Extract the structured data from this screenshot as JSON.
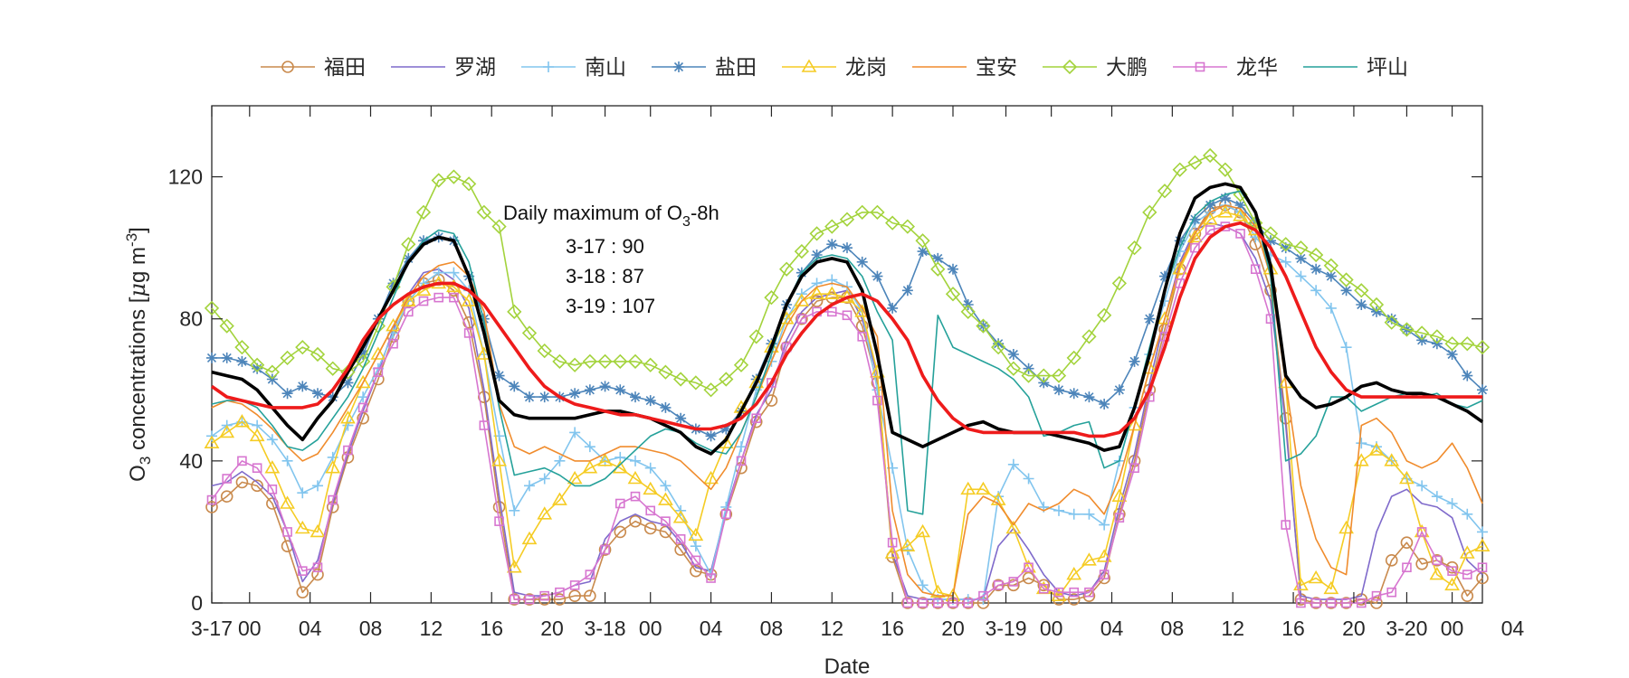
{
  "chart_data": {
    "type": "line",
    "title": "",
    "xlabel": "Date",
    "ylabel": {
      "prefix": "O",
      "sub": "3",
      "main": " concentrations [",
      "mu": "μ",
      "unit": "g m",
      "sup": "-3",
      "end": "]"
    },
    "ylim": [
      0,
      140
    ],
    "yticks": [
      0,
      40,
      80,
      120
    ],
    "xlim": [
      0,
      84
    ],
    "xticks": [
      {
        "x": 0,
        "label": "3-17"
      },
      {
        "x": 2.5,
        "label": "00"
      },
      {
        "x": 6.5,
        "label": "04"
      },
      {
        "x": 10.5,
        "label": "08"
      },
      {
        "x": 14.5,
        "label": "12"
      },
      {
        "x": 18.5,
        "label": "16"
      },
      {
        "x": 22.5,
        "label": "20"
      },
      {
        "x": 26,
        "label": "3-18"
      },
      {
        "x": 29,
        "label": "00"
      },
      {
        "x": 33,
        "label": "04"
      },
      {
        "x": 37,
        "label": "08"
      },
      {
        "x": 41,
        "label": "12"
      },
      {
        "x": 45,
        "label": "16"
      },
      {
        "x": 49,
        "label": "20"
      },
      {
        "x": 52.5,
        "label": "3-19"
      },
      {
        "x": 55.5,
        "label": "00"
      },
      {
        "x": 59.5,
        "label": "04"
      },
      {
        "x": 63.5,
        "label": "08"
      },
      {
        "x": 67.5,
        "label": "12"
      },
      {
        "x": 71.5,
        "label": "16"
      },
      {
        "x": 75.5,
        "label": "20"
      },
      {
        "x": 79,
        "label": "3-20"
      },
      {
        "x": 82,
        "label": "00"
      },
      {
        "x": 86,
        "label": "04"
      }
    ],
    "grid": false,
    "legend_position": "top",
    "annotation": {
      "title_prefix": "Daily maximum of O",
      "title_sub": "3",
      "title_suffix": "-8h",
      "lines": [
        "3-17 : 90",
        "3-18 : 87",
        "3-19 : 107"
      ]
    },
    "x": [
      0,
      1,
      2,
      3,
      4,
      5,
      6,
      7,
      8,
      9,
      10,
      11,
      12,
      13,
      14,
      15,
      16,
      17,
      18,
      19,
      20,
      21,
      22,
      23,
      24,
      25,
      26,
      27,
      28,
      29,
      30,
      31,
      32,
      33,
      34,
      35,
      36,
      37,
      38,
      39,
      40,
      41,
      42,
      43,
      44,
      45,
      46,
      47,
      48,
      49,
      50,
      51,
      52,
      53,
      54,
      55,
      56,
      57,
      58,
      59,
      60,
      61,
      62,
      63,
      64,
      65,
      66,
      67,
      68,
      69,
      70,
      71,
      72,
      73,
      74,
      75,
      76,
      77,
      78,
      79,
      80,
      81,
      82,
      83,
      84
    ],
    "series": [
      {
        "name": "福田",
        "color": "#c98a4d",
        "marker": "circle",
        "values": [
          27,
          30,
          34,
          33,
          28,
          16,
          3,
          8,
          27,
          41,
          52,
          63,
          75,
          85,
          90,
          91,
          88,
          79,
          58,
          27,
          1,
          1,
          1,
          1,
          2,
          2,
          15,
          20,
          23,
          21,
          20,
          15,
          9,
          8,
          25,
          38,
          51,
          57,
          72,
          80,
          85,
          86,
          86,
          78,
          62,
          13,
          0,
          0,
          0,
          0,
          0,
          0,
          5,
          5,
          7,
          5,
          1,
          1,
          2,
          7,
          25,
          40,
          60,
          77,
          94,
          104,
          111,
          112,
          110,
          101,
          88,
          52,
          1,
          0,
          0,
          0,
          1,
          0,
          12,
          17,
          11,
          12,
          10,
          2,
          7
        ]
      },
      {
        "name": "罗湖",
        "color": "#7f6acb",
        "marker": "none",
        "values": [
          33,
          34,
          37,
          34,
          30,
          20,
          6,
          12,
          28,
          42,
          54,
          65,
          77,
          87,
          93,
          94,
          91,
          83,
          60,
          30,
          3,
          2,
          2,
          3,
          5,
          6,
          18,
          23,
          25,
          23,
          22,
          17,
          10,
          9,
          26,
          40,
          53,
          60,
          74,
          82,
          86,
          87,
          88,
          80,
          64,
          14,
          2,
          1,
          1,
          1,
          1,
          1,
          16,
          21,
          15,
          8,
          3,
          2,
          3,
          9,
          27,
          42,
          62,
          80,
          96,
          105,
          107,
          106,
          104,
          97,
          85,
          50,
          2,
          1,
          1,
          1,
          2,
          20,
          30,
          32,
          28,
          27,
          24,
          12,
          8
        ]
      },
      {
        "name": "南山",
        "color": "#82c5ee",
        "marker": "plus",
        "values": [
          47,
          50,
          51,
          50,
          46,
          40,
          31,
          33,
          41,
          50,
          58,
          66,
          76,
          85,
          90,
          93,
          93,
          88,
          70,
          47,
          26,
          33,
          35,
          40,
          48,
          44,
          40,
          41,
          40,
          38,
          33,
          26,
          16,
          8,
          27,
          44,
          60,
          68,
          80,
          87,
          90,
          91,
          89,
          82,
          60,
          38,
          15,
          5,
          1,
          1,
          1,
          1,
          30,
          39,
          35,
          27,
          26,
          25,
          25,
          22,
          40,
          55,
          70,
          85,
          99,
          107,
          110,
          112,
          110,
          103,
          98,
          96,
          92,
          88,
          83,
          72,
          45,
          44,
          40,
          35,
          33,
          30,
          28,
          25,
          20
        ]
      },
      {
        "name": "盐田",
        "color": "#4d85ba",
        "marker": "asterisk",
        "values": [
          69,
          69,
          68,
          66,
          63,
          59,
          61,
          59,
          58,
          62,
          70,
          80,
          90,
          97,
          102,
          103,
          102,
          92,
          80,
          64,
          61,
          58,
          58,
          58,
          59,
          60,
          61,
          60,
          58,
          57,
          55,
          52,
          49,
          47,
          49,
          54,
          63,
          73,
          84,
          93,
          98,
          101,
          100,
          96,
          92,
          83,
          88,
          99,
          97,
          94,
          84,
          78,
          73,
          70,
          66,
          62,
          60,
          59,
          58,
          56,
          60,
          68,
          80,
          92,
          102,
          108,
          112,
          114,
          112,
          107,
          102,
          100,
          97,
          94,
          92,
          88,
          84,
          82,
          80,
          77,
          74,
          73,
          70,
          64,
          60
        ]
      },
      {
        "name": "龙岗",
        "color": "#f5cc24",
        "marker": "triangle",
        "values": [
          45,
          48,
          51,
          47,
          38,
          28,
          21,
          20,
          38,
          52,
          62,
          70,
          78,
          85,
          88,
          90,
          89,
          85,
          70,
          40,
          10,
          18,
          25,
          29,
          35,
          38,
          40,
          38,
          35,
          32,
          29,
          24,
          19,
          35,
          45,
          55,
          62,
          72,
          80,
          85,
          87,
          87,
          86,
          82,
          65,
          14,
          16,
          20,
          3,
          2,
          32,
          32,
          29,
          21,
          10,
          4,
          2,
          8,
          12,
          13,
          30,
          50,
          66,
          80,
          94,
          103,
          108,
          110,
          109,
          105,
          94,
          62,
          5,
          7,
          4,
          21,
          40,
          43,
          40,
          35,
          20,
          8,
          5,
          14,
          16
        ]
      },
      {
        "name": "宝安",
        "color": "#f08c2d",
        "marker": "none",
        "values": [
          55,
          57,
          56,
          53,
          49,
          44,
          40,
          42,
          48,
          55,
          62,
          70,
          78,
          86,
          92,
          95,
          96,
          92,
          82,
          56,
          44,
          42,
          44,
          42,
          40,
          40,
          42,
          44,
          44,
          43,
          42,
          40,
          36,
          32,
          38,
          48,
          58,
          68,
          78,
          85,
          89,
          90,
          89,
          83,
          75,
          26,
          8,
          3,
          2,
          2,
          25,
          30,
          28,
          22,
          28,
          26,
          28,
          32,
          30,
          25,
          35,
          50,
          66,
          80,
          95,
          104,
          110,
          112,
          111,
          106,
          92,
          62,
          33,
          18,
          10,
          8,
          50,
          52,
          48,
          40,
          38,
          40,
          45,
          38,
          28
        ]
      },
      {
        "name": "大鹏",
        "color": "#a3d33c",
        "marker": "diamond",
        "values": [
          83,
          78,
          72,
          67,
          65,
          69,
          72,
          70,
          66,
          65,
          68,
          78,
          89,
          101,
          110,
          119,
          120,
          118,
          110,
          106,
          82,
          76,
          71,
          68,
          67,
          68,
          68,
          68,
          68,
          67,
          65,
          63,
          62,
          60,
          63,
          67,
          75,
          86,
          94,
          99,
          104,
          106,
          108,
          110,
          110,
          107,
          106,
          102,
          94,
          87,
          82,
          78,
          72,
          66,
          64,
          64,
          64,
          69,
          75,
          81,
          90,
          100,
          110,
          116,
          122,
          124,
          126,
          122,
          115,
          107,
          104,
          101,
          100,
          98,
          95,
          91,
          88,
          84,
          79,
          77,
          76,
          75,
          73,
          73,
          72
        ]
      },
      {
        "name": "龙华",
        "color": "#d776d0",
        "marker": "square",
        "values": [
          29,
          35,
          40,
          38,
          32,
          20,
          9,
          10,
          29,
          43,
          55,
          65,
          73,
          82,
          85,
          86,
          86,
          76,
          50,
          23,
          1,
          1,
          2,
          3,
          5,
          8,
          15,
          28,
          30,
          26,
          23,
          18,
          12,
          7,
          25,
          40,
          52,
          62,
          72,
          80,
          82,
          82,
          81,
          75,
          57,
          17,
          0,
          0,
          0,
          0,
          0,
          2,
          5,
          6,
          10,
          4,
          3,
          3,
          3,
          8,
          24,
          38,
          58,
          75,
          90,
          100,
          105,
          106,
          104,
          94,
          80,
          22,
          0,
          0,
          0,
          0,
          0,
          2,
          3,
          10,
          20,
          12,
          9,
          8,
          10
        ]
      },
      {
        "name": "坪山",
        "color": "#25a19a",
        "marker": "none",
        "values": [
          56,
          57,
          57,
          55,
          50,
          44,
          43,
          46,
          52,
          58,
          66,
          76,
          86,
          96,
          102,
          105,
          104,
          96,
          79,
          55,
          36,
          37,
          38,
          36,
          33,
          33,
          35,
          39,
          43,
          47,
          49,
          48,
          45,
          43,
          42,
          48,
          58,
          70,
          84,
          93,
          97,
          98,
          97,
          92,
          82,
          74,
          26,
          25,
          81,
          72,
          70,
          68,
          66,
          63,
          58,
          47,
          48,
          50,
          51,
          38,
          40,
          55,
          72,
          88,
          100,
          109,
          113,
          115,
          116,
          110,
          92,
          40,
          42,
          47,
          58,
          58,
          54,
          56,
          58,
          59,
          58,
          59,
          56,
          55,
          57
        ]
      },
      {
        "name": "",
        "color": "#000000",
        "marker": "none",
        "thick": true,
        "values": [
          65,
          64,
          63,
          60,
          55,
          50,
          46,
          52,
          57,
          65,
          72,
          80,
          88,
          96,
          101,
          103,
          102,
          92,
          76,
          57,
          53,
          52,
          52,
          52,
          52,
          53,
          54,
          54,
          53,
          52,
          50,
          48,
          44,
          42,
          46,
          54,
          62,
          72,
          84,
          92,
          96,
          97,
          96,
          88,
          70,
          48,
          46,
          44,
          46,
          48,
          50,
          51,
          49,
          48,
          48,
          48,
          47,
          46,
          45,
          43,
          44,
          55,
          70,
          88,
          104,
          114,
          117,
          118,
          117,
          110,
          95,
          64,
          58,
          55,
          56,
          58,
          61,
          62,
          60,
          59,
          59,
          58,
          56,
          54,
          51
        ]
      },
      {
        "name": "",
        "color": "#ee1b1b",
        "marker": "none",
        "thick": true,
        "values": [
          61,
          58,
          57,
          56,
          55,
          55,
          55,
          56,
          60,
          66,
          74,
          80,
          84,
          87,
          89,
          90,
          90,
          88,
          84,
          78,
          72,
          66,
          61,
          58,
          56,
          55,
          54,
          53,
          53,
          52,
          51,
          50,
          49,
          49,
          50,
          52,
          56,
          62,
          70,
          76,
          81,
          84,
          86,
          87,
          85,
          80,
          74,
          64,
          57,
          52,
          49,
          48,
          48,
          48,
          48,
          48,
          48,
          48,
          47,
          47,
          48,
          52,
          60,
          72,
          86,
          97,
          103,
          106,
          107,
          105,
          100,
          92,
          82,
          72,
          65,
          60,
          58,
          58,
          58,
          58,
          58,
          58,
          58,
          58,
          58
        ]
      }
    ]
  }
}
